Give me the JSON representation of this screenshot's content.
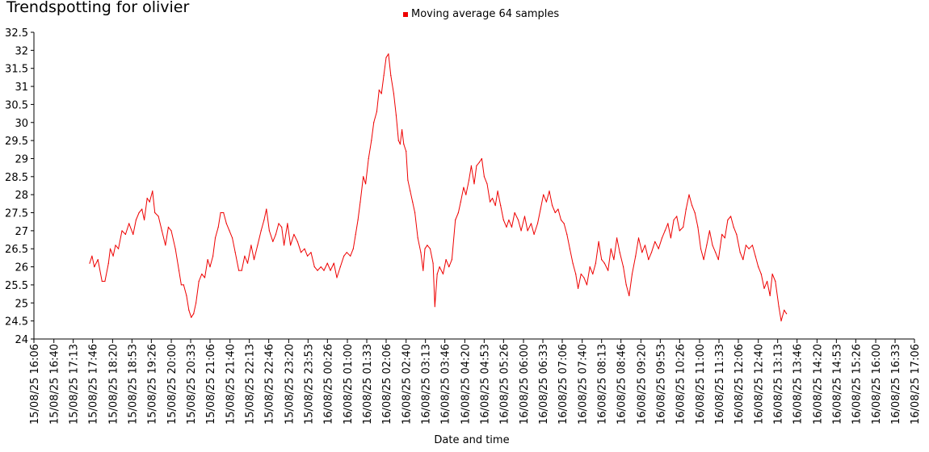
{
  "chart_data": {
    "type": "line",
    "title": "Trendspotting for olivier",
    "xlabel": "Date and time",
    "ylabel": "",
    "ylim": [
      24,
      32.5
    ],
    "y_ticks": [
      "24",
      "24.5",
      "25",
      "25.5",
      "26",
      "26.5",
      "27",
      "27.5",
      "28",
      "28.5",
      "29",
      "29.5",
      "30",
      "30.5",
      "31",
      "31.5",
      "32",
      "32.5"
    ],
    "x_tick_labels": [
      "15/08/25 16:06",
      "15/08/25 16:40",
      "15/08/25 17:13",
      "15/08/25 17:46",
      "15/08/25 18:20",
      "15/08/25 18:53",
      "15/08/25 19:26",
      "15/08/25 20:00",
      "15/08/25 20:33",
      "15/08/25 21:06",
      "15/08/25 21:40",
      "15/08/25 22:13",
      "15/08/25 22:46",
      "15/08/25 23:20",
      "15/08/25 23:53",
      "16/08/25 00:26",
      "16/08/25 01:00",
      "16/08/25 01:33",
      "16/08/25 02:06",
      "16/08/25 02:40",
      "16/08/25 03:13",
      "16/08/25 03:46",
      "16/08/25 04:20",
      "16/08/25 04:53",
      "16/08/25 05:26",
      "16/08/25 06:00",
      "16/08/25 06:33",
      "16/08/25 07:06",
      "16/08/25 07:40",
      "16/08/25 08:13",
      "16/08/25 08:46",
      "16/08/25 09:20",
      "16/08/25 09:53",
      "16/08/25 10:26",
      "16/08/25 11:00",
      "16/08/25 11:33",
      "16/08/25 12:06",
      "16/08/25 12:40",
      "16/08/25 13:13",
      "16/08/25 13:46",
      "16/08/25 14:20",
      "16/08/25 14:53",
      "16/08/25 15:26",
      "16/08/25 16:00",
      "16/08/25 16:33",
      "16/08/25 17:06"
    ],
    "legend_position": "top-center",
    "grid": false,
    "series": [
      {
        "name": "Moving average 64 samples",
        "color": "#ee0000",
        "points": [
          [
            "15/08/25 17:41",
            26.1
          ],
          [
            "15/08/25 17:45",
            26.3
          ],
          [
            "15/08/25 17:49",
            26.0
          ],
          [
            "15/08/25 17:55",
            26.2
          ],
          [
            "15/08/25 18:02",
            25.6
          ],
          [
            "15/08/25 18:07",
            25.6
          ],
          [
            "15/08/25 18:13",
            26.1
          ],
          [
            "15/08/25 18:16",
            26.5
          ],
          [
            "15/08/25 18:21",
            26.3
          ],
          [
            "15/08/25 18:25",
            26.6
          ],
          [
            "15/08/25 18:30",
            26.5
          ],
          [
            "15/08/25 18:36",
            27.0
          ],
          [
            "15/08/25 18:42",
            26.9
          ],
          [
            "15/08/25 18:48",
            27.2
          ],
          [
            "15/08/25 18:55",
            26.9
          ],
          [
            "15/08/25 19:00",
            27.3
          ],
          [
            "15/08/25 19:05",
            27.5
          ],
          [
            "15/08/25 19:10",
            27.6
          ],
          [
            "15/08/25 19:14",
            27.3
          ],
          [
            "15/08/25 19:19",
            27.9
          ],
          [
            "15/08/25 19:23",
            27.8
          ],
          [
            "15/08/25 19:28",
            28.1
          ],
          [
            "15/08/25 19:32",
            27.5
          ],
          [
            "15/08/25 19:38",
            27.4
          ],
          [
            "15/08/25 19:44",
            27.0
          ],
          [
            "15/08/25 19:50",
            26.6
          ],
          [
            "15/08/25 19:55",
            27.1
          ],
          [
            "15/08/25 20:00",
            27.0
          ],
          [
            "15/08/25 20:07",
            26.5
          ],
          [
            "15/08/25 20:13",
            25.9
          ],
          [
            "15/08/25 20:17",
            25.5
          ],
          [
            "15/08/25 20:21",
            25.5
          ],
          [
            "15/08/25 20:26",
            25.2
          ],
          [
            "15/08/25 20:30",
            24.8
          ],
          [
            "15/08/25 20:34",
            24.6
          ],
          [
            "15/08/25 20:38",
            24.7
          ],
          [
            "15/08/25 20:42",
            25.0
          ],
          [
            "15/08/25 20:47",
            25.6
          ],
          [
            "15/08/25 20:52",
            25.8
          ],
          [
            "15/08/25 20:57",
            25.7
          ],
          [
            "15/08/25 21:02",
            26.2
          ],
          [
            "15/08/25 21:06",
            26.0
          ],
          [
            "15/08/25 21:11",
            26.3
          ],
          [
            "15/08/25 21:15",
            26.8
          ],
          [
            "15/08/25 21:20",
            27.1
          ],
          [
            "15/08/25 21:24",
            27.5
          ],
          [
            "15/08/25 21:29",
            27.5
          ],
          [
            "15/08/25 21:34",
            27.2
          ],
          [
            "15/08/25 21:39",
            27.0
          ],
          [
            "15/08/25 21:44",
            26.8
          ],
          [
            "15/08/25 21:49",
            26.4
          ],
          [
            "15/08/25 21:55",
            25.9
          ],
          [
            "15/08/25 22:00",
            25.9
          ],
          [
            "15/08/25 22:05",
            26.3
          ],
          [
            "15/08/25 22:10",
            26.1
          ],
          [
            "15/08/25 22:16",
            26.6
          ],
          [
            "15/08/25 22:21",
            26.2
          ],
          [
            "15/08/25 22:27",
            26.6
          ],
          [
            "15/08/25 22:33",
            27.0
          ],
          [
            "15/08/25 22:38",
            27.3
          ],
          [
            "15/08/25 22:42",
            27.6
          ],
          [
            "15/08/25 22:47",
            27.0
          ],
          [
            "15/08/25 22:53",
            26.7
          ],
          [
            "15/08/25 22:58",
            26.9
          ],
          [
            "15/08/25 23:03",
            27.2
          ],
          [
            "15/08/25 23:08",
            27.1
          ],
          [
            "15/08/25 23:12",
            26.6
          ],
          [
            "15/08/25 23:18",
            27.2
          ],
          [
            "15/08/25 23:23",
            26.6
          ],
          [
            "15/08/25 23:29",
            26.9
          ],
          [
            "15/08/25 23:35",
            26.7
          ],
          [
            "15/08/25 23:41",
            26.4
          ],
          [
            "15/08/25 23:47",
            26.5
          ],
          [
            "15/08/25 23:52",
            26.3
          ],
          [
            "15/08/25 23:58",
            26.4
          ],
          [
            "16/08/25 00:04",
            26.0
          ],
          [
            "16/08/25 00:09",
            25.9
          ],
          [
            "16/08/25 00:15",
            26.0
          ],
          [
            "16/08/25 00:20",
            25.9
          ],
          [
            "16/08/25 00:26",
            26.1
          ],
          [
            "16/08/25 00:31",
            25.9
          ],
          [
            "16/08/25 00:37",
            26.1
          ],
          [
            "16/08/25 00:42",
            25.7
          ],
          [
            "16/08/25 00:48",
            26.0
          ],
          [
            "16/08/25 00:54",
            26.3
          ],
          [
            "16/08/25 00:59",
            26.4
          ],
          [
            "16/08/25 01:05",
            26.3
          ],
          [
            "16/08/25 01:10",
            26.5
          ],
          [
            "16/08/25 01:14",
            26.9
          ],
          [
            "16/08/25 01:18",
            27.3
          ],
          [
            "16/08/25 01:22",
            27.8
          ],
          [
            "16/08/25 01:27",
            28.5
          ],
          [
            "16/08/25 01:31",
            28.3
          ],
          [
            "16/08/25 01:36",
            29.0
          ],
          [
            "16/08/25 01:41",
            29.5
          ],
          [
            "16/08/25 01:45",
            30.0
          ],
          [
            "16/08/25 01:50",
            30.3
          ],
          [
            "16/08/25 01:54",
            30.9
          ],
          [
            "16/08/25 01:58",
            30.8
          ],
          [
            "16/08/25 02:02",
            31.3
          ],
          [
            "16/08/25 02:06",
            31.8
          ],
          [
            "16/08/25 02:10",
            31.9
          ],
          [
            "16/08/25 02:14",
            31.3
          ],
          [
            "16/08/25 02:19",
            30.8
          ],
          [
            "16/08/25 02:23",
            30.2
          ],
          [
            "16/08/25 02:27",
            29.5
          ],
          [
            "16/08/25 02:30",
            29.4
          ],
          [
            "16/08/25 02:33",
            29.8
          ],
          [
            "16/08/25 02:36",
            29.4
          ],
          [
            "16/08/25 02:40",
            29.2
          ],
          [
            "16/08/25 02:43",
            28.4
          ],
          [
            "16/08/25 02:47",
            28.1
          ],
          [
            "16/08/25 02:51",
            27.8
          ],
          [
            "16/08/25 02:55",
            27.5
          ],
          [
            "16/08/25 03:00",
            26.8
          ],
          [
            "16/08/25 03:05",
            26.4
          ],
          [
            "16/08/25 03:09",
            25.9
          ],
          [
            "16/08/25 03:12",
            26.5
          ],
          [
            "16/08/25 03:16",
            26.6
          ],
          [
            "16/08/25 03:21",
            26.5
          ],
          [
            "16/08/25 03:26",
            26.1
          ],
          [
            "16/08/25 03:29",
            24.9
          ],
          [
            "16/08/25 03:33",
            25.8
          ],
          [
            "16/08/25 03:37",
            26.0
          ],
          [
            "16/08/25 03:43",
            25.8
          ],
          [
            "16/08/25 03:48",
            26.2
          ],
          [
            "16/08/25 03:53",
            26.0
          ],
          [
            "16/08/25 03:58",
            26.2
          ],
          [
            "16/08/25 04:04",
            27.3
          ],
          [
            "16/08/25 04:09",
            27.5
          ],
          [
            "16/08/25 04:13",
            27.8
          ],
          [
            "16/08/25 04:18",
            28.2
          ],
          [
            "16/08/25 04:22",
            28.0
          ],
          [
            "16/08/25 04:27",
            28.4
          ],
          [
            "16/08/25 04:31",
            28.8
          ],
          [
            "16/08/25 04:36",
            28.3
          ],
          [
            "16/08/25 04:40",
            28.8
          ],
          [
            "16/08/25 04:45",
            28.9
          ],
          [
            "16/08/25 04:49",
            29.0
          ],
          [
            "16/08/25 04:53",
            28.5
          ],
          [
            "16/08/25 04:58",
            28.3
          ],
          [
            "16/08/25 05:03",
            27.8
          ],
          [
            "16/08/25 05:07",
            27.9
          ],
          [
            "16/08/25 05:12",
            27.7
          ],
          [
            "16/08/25 05:16",
            28.1
          ],
          [
            "16/08/25 05:21",
            27.7
          ],
          [
            "16/08/25 05:26",
            27.3
          ],
          [
            "16/08/25 05:31",
            27.1
          ],
          [
            "16/08/25 05:35",
            27.3
          ],
          [
            "16/08/25 05:40",
            27.1
          ],
          [
            "16/08/25 05:45",
            27.5
          ],
          [
            "16/08/25 05:51",
            27.3
          ],
          [
            "16/08/25 05:56",
            27.0
          ],
          [
            "16/08/25 06:02",
            27.4
          ],
          [
            "16/08/25 06:07",
            27.0
          ],
          [
            "16/08/25 06:13",
            27.2
          ],
          [
            "16/08/25 06:18",
            26.9
          ],
          [
            "16/08/25 06:24",
            27.2
          ],
          [
            "16/08/25 06:29",
            27.6
          ],
          [
            "16/08/25 06:34",
            28.0
          ],
          [
            "16/08/25 06:39",
            27.8
          ],
          [
            "16/08/25 06:44",
            28.1
          ],
          [
            "16/08/25 06:49",
            27.7
          ],
          [
            "16/08/25 06:54",
            27.5
          ],
          [
            "16/08/25 06:59",
            27.6
          ],
          [
            "16/08/25 07:04",
            27.3
          ],
          [
            "16/08/25 07:09",
            27.2
          ],
          [
            "16/08/25 07:14",
            26.9
          ],
          [
            "16/08/25 07:19",
            26.5
          ],
          [
            "16/08/25 07:24",
            26.1
          ],
          [
            "16/08/25 07:29",
            25.8
          ],
          [
            "16/08/25 07:33",
            25.4
          ],
          [
            "16/08/25 07:38",
            25.8
          ],
          [
            "16/08/25 07:43",
            25.7
          ],
          [
            "16/08/25 07:48",
            25.5
          ],
          [
            "16/08/25 07:53",
            26.0
          ],
          [
            "16/08/25 07:58",
            25.8
          ],
          [
            "16/08/25 08:03",
            26.1
          ],
          [
            "16/08/25 08:08",
            26.7
          ],
          [
            "16/08/25 08:13",
            26.2
          ],
          [
            "16/08/25 08:18",
            26.1
          ],
          [
            "16/08/25 08:24",
            25.9
          ],
          [
            "16/08/25 08:29",
            26.5
          ],
          [
            "16/08/25 08:34",
            26.2
          ],
          [
            "16/08/25 08:39",
            26.8
          ],
          [
            "16/08/25 08:44",
            26.4
          ],
          [
            "16/08/25 08:50",
            26.0
          ],
          [
            "16/08/25 08:55",
            25.5
          ],
          [
            "16/08/25 09:00",
            25.2
          ],
          [
            "16/08/25 09:05",
            25.8
          ],
          [
            "16/08/25 09:11",
            26.3
          ],
          [
            "16/08/25 09:16",
            26.8
          ],
          [
            "16/08/25 09:22",
            26.4
          ],
          [
            "16/08/25 09:27",
            26.6
          ],
          [
            "16/08/25 09:33",
            26.2
          ],
          [
            "16/08/25 09:38",
            26.4
          ],
          [
            "16/08/25 09:44",
            26.7
          ],
          [
            "16/08/25 09:50",
            26.5
          ],
          [
            "16/08/25 09:56",
            26.8
          ],
          [
            "16/08/25 10:01",
            27.0
          ],
          [
            "16/08/25 10:06",
            27.2
          ],
          [
            "16/08/25 10:11",
            26.8
          ],
          [
            "16/08/25 10:16",
            27.3
          ],
          [
            "16/08/25 10:21",
            27.4
          ],
          [
            "16/08/25 10:26",
            27.0
          ],
          [
            "16/08/25 10:32",
            27.1
          ],
          [
            "16/08/25 10:37",
            27.6
          ],
          [
            "16/08/25 10:42",
            28.0
          ],
          [
            "16/08/25 10:47",
            27.7
          ],
          [
            "16/08/25 10:52",
            27.5
          ],
          [
            "16/08/25 10:57",
            27.1
          ],
          [
            "16/08/25 11:02",
            26.5
          ],
          [
            "16/08/25 11:07",
            26.2
          ],
          [
            "16/08/25 11:12",
            26.6
          ],
          [
            "16/08/25 11:17",
            27.0
          ],
          [
            "16/08/25 11:22",
            26.6
          ],
          [
            "16/08/25 11:27",
            26.4
          ],
          [
            "16/08/25 11:32",
            26.2
          ],
          [
            "16/08/25 11:38",
            26.9
          ],
          [
            "16/08/25 11:43",
            26.8
          ],
          [
            "16/08/25 11:48",
            27.3
          ],
          [
            "16/08/25 11:53",
            27.4
          ],
          [
            "16/08/25 11:58",
            27.1
          ],
          [
            "16/08/25 12:03",
            26.9
          ],
          [
            "16/08/25 12:09",
            26.4
          ],
          [
            "16/08/25 12:14",
            26.2
          ],
          [
            "16/08/25 12:19",
            26.6
          ],
          [
            "16/08/25 12:24",
            26.5
          ],
          [
            "16/08/25 12:30",
            26.6
          ],
          [
            "16/08/25 12:35",
            26.3
          ],
          [
            "16/08/25 12:40",
            26.0
          ],
          [
            "16/08/25 12:45",
            25.8
          ],
          [
            "16/08/25 12:50",
            25.4
          ],
          [
            "16/08/25 12:55",
            25.6
          ],
          [
            "16/08/25 13:00",
            25.2
          ],
          [
            "16/08/25 13:04",
            25.8
          ],
          [
            "16/08/25 13:09",
            25.6
          ],
          [
            "16/08/25 13:15",
            24.9
          ],
          [
            "16/08/25 13:19",
            24.5
          ],
          [
            "16/08/25 13:24",
            24.8
          ],
          [
            "16/08/25 13:28",
            24.7
          ]
        ]
      }
    ]
  }
}
